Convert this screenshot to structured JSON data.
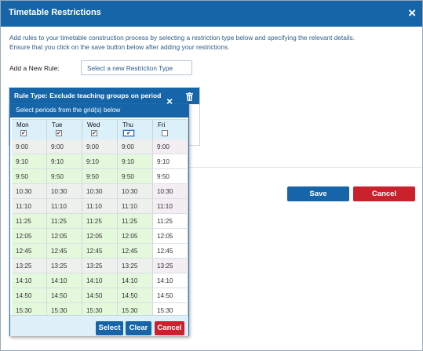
{
  "dialog": {
    "title": "Timetable Restrictions",
    "close_icon": "×",
    "instructions_line1": "Add rules to your timetable construction process by selecting a restriction type below and specifying the relevant details.",
    "instructions_line2": "Ensure that you click on the save button below after adding your restrictions.",
    "add_rule_label": "Add a New Rule:",
    "add_rule_placeholder": "Select a new Restriction Type",
    "save_label": "Save",
    "cancel_label": "Cancel"
  },
  "rule": {
    "header": "Rule Type: Exclude teaching groups on period",
    "delete_icon": "trash-icon"
  },
  "picker": {
    "header": "Select periods from the grid(s) below",
    "close_icon": "×",
    "days": [
      {
        "name": "Mon",
        "checked": true,
        "focused": false,
        "color": "#e4f8dc"
      },
      {
        "name": "Tue",
        "checked": true,
        "focused": false,
        "color": "#e4f8dc"
      },
      {
        "name": "Wed",
        "checked": true,
        "focused": false,
        "color": "#e4f8dc"
      },
      {
        "name": "Thu",
        "checked": true,
        "focused": true,
        "color": "#e4f8dc"
      },
      {
        "name": "Fri",
        "checked": false,
        "focused": false,
        "color": "#ffffff"
      }
    ],
    "periods": [
      "9:00",
      "9:10",
      "9:50",
      "10:30",
      "11:10",
      "11:25",
      "12:05",
      "12:45",
      "13:25",
      "14:10",
      "14:50",
      "15:30",
      "15:30"
    ],
    "odd_row_color": "#f4eef2",
    "select_label": "Select",
    "clear_label": "Clear",
    "cancel_label": "Cancel"
  }
}
